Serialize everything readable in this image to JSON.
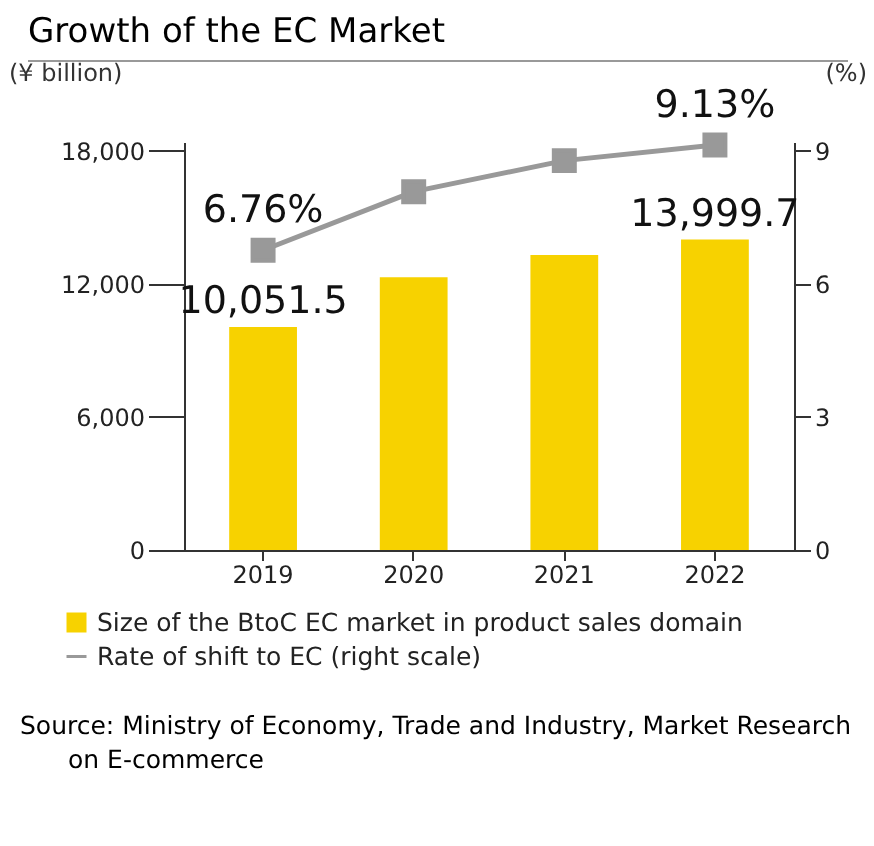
{
  "chart_data": {
    "type": "bar",
    "title": "Growth of the EC Market",
    "ylabel": "(¥ billion)",
    "y2label": "(%)",
    "categories": [
      "2019",
      "2020",
      "2021",
      "2022"
    ],
    "series": [
      {
        "name": "Size of the BtoC EC market in product sales domain",
        "color": "#f7d200",
        "values": [
          10051.5,
          12300,
          13300,
          13999.7
        ],
        "value_labels": [
          "10,051.5",
          null,
          null,
          "13,999.7"
        ]
      },
      {
        "type": "line",
        "name": "Rate of shift to EC (right scale)",
        "color": "#999999",
        "axis": "y2",
        "marker": "square",
        "values": [
          6.76,
          8.08,
          8.78,
          9.13
        ],
        "value_labels": [
          "6.76%",
          null,
          null,
          "9.13%"
        ]
      }
    ],
    "ylim": [
      0,
      18400
    ],
    "yticks": [
      0,
      {
        "value": 6000,
        "label": "6,000"
      },
      {
        "value": 12000,
        "label": "12,000"
      },
      {
        "value": 18000,
        "label": "18,000"
      }
    ],
    "y2lim": [
      0,
      9.2
    ],
    "y2ticks": [
      0,
      3,
      6,
      9
    ],
    "legend": "bottom",
    "annotations": [
      "Source: Ministry of Economy, Trade and Industry, Market Research on E-commerce"
    ]
  }
}
